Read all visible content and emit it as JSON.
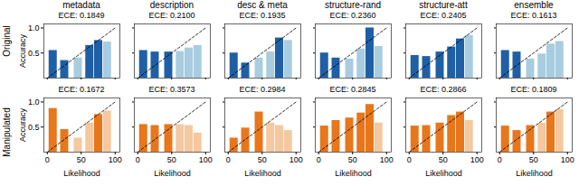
{
  "chart_data": [
    {
      "type": "bar",
      "title": "metadata",
      "subtitle": "ECE: 0.1849",
      "ylabel": "Accuracy",
      "xlim": [
        -5,
        107
      ],
      "ylim": [
        0,
        1.08
      ],
      "xticks": [
        0,
        50,
        100
      ],
      "yticks": [
        0.5,
        {
          "value": 1.0,
          "label": "1.0"
        }
      ],
      "tick_labels": "y",
      "annotations": [
        {
          "text": "Original"
        }
      ],
      "series": [
        {
          "type": "bar",
          "x": [
            8,
            25,
            45,
            62,
            75,
            88
          ],
          "values": [
            0.55,
            0.35,
            0.4,
            0.65,
            0.75,
            0.72
          ],
          "colors": [
            "#1f5fa6",
            "#1f5fa6",
            "#a8cce0",
            "#1f5fa6",
            "#1f5fa6",
            "#a8cce0"
          ]
        },
        {
          "type": "line",
          "x": [
            0,
            100
          ],
          "values": [
            0,
            1.0
          ],
          "color": "black",
          "line_style": "dashed"
        }
      ]
    },
    {
      "type": "bar",
      "title": "description",
      "subtitle": "ECE: 0.2100",
      "xlim": [
        -5,
        107
      ],
      "ylim": [
        0,
        1.08
      ],
      "xticks": [
        0,
        50,
        100
      ],
      "yticks": [
        0.5,
        {
          "value": 1.0,
          "label": "1.0"
        }
      ],
      "tick_labels": false,
      "series": [
        {
          "type": "bar",
          "x": [
            8,
            25,
            45,
            62,
            75,
            88
          ],
          "values": [
            0.55,
            0.52,
            0.52,
            0.53,
            0.6,
            0.65
          ],
          "colors": [
            "#1f5fa6",
            "#1f5fa6",
            "#1f5fa6",
            "#a8cce0",
            "#a8cce0",
            "#a8cce0"
          ]
        },
        {
          "type": "line",
          "x": [
            0,
            100
          ],
          "values": [
            0,
            1.0
          ],
          "color": "black",
          "line_style": "dashed"
        }
      ]
    },
    {
      "type": "bar",
      "title": "desc & meta",
      "subtitle": "ECE: 0.1935",
      "xlim": [
        -5,
        107
      ],
      "ylim": [
        0,
        1.08
      ],
      "xticks": [
        0,
        50,
        100
      ],
      "yticks": [
        0.5,
        {
          "value": 1.0,
          "label": "1.0"
        }
      ],
      "tick_labels": false,
      "series": [
        {
          "type": "bar",
          "x": [
            8,
            25,
            45,
            62,
            75,
            88
          ],
          "values": [
            0.5,
            0.3,
            0.4,
            0.52,
            0.8,
            0.75
          ],
          "colors": [
            "#1f5fa6",
            "#1f5fa6",
            "#a8cce0",
            "#a8cce0",
            "#1f5fa6",
            "#a8cce0"
          ]
        },
        {
          "type": "line",
          "x": [
            0,
            100
          ],
          "values": [
            0,
            1.0
          ],
          "color": "black",
          "line_style": "dashed"
        }
      ]
    },
    {
      "type": "bar",
      "title": "structure-rand",
      "subtitle": "ECE: 0.2360",
      "xlim": [
        -5,
        107
      ],
      "ylim": [
        0,
        1.08
      ],
      "xticks": [
        0,
        50,
        100
      ],
      "yticks": [
        0.5,
        {
          "value": 1.0,
          "label": "1.0"
        }
      ],
      "tick_labels": false,
      "series": [
        {
          "type": "bar",
          "x": [
            8,
            25,
            45,
            62,
            75,
            88
          ],
          "values": [
            0.5,
            0.4,
            0.38,
            0.58,
            1.0,
            0.63
          ],
          "colors": [
            "#1f5fa6",
            "#1f5fa6",
            "#a8cce0",
            "#a8cce0",
            "#1f5fa6",
            "#a8cce0"
          ]
        },
        {
          "type": "line",
          "x": [
            0,
            100
          ],
          "values": [
            0,
            1.0
          ],
          "color": "black",
          "line_style": "dashed"
        }
      ]
    },
    {
      "type": "bar",
      "title": "structure-att",
      "subtitle": "ECE: 0.2405",
      "xlim": [
        -5,
        107
      ],
      "ylim": [
        0,
        1.08
      ],
      "xticks": [
        0,
        50,
        100
      ],
      "yticks": [
        0.5,
        {
          "value": 1.0,
          "label": "1.0"
        }
      ],
      "tick_labels": false,
      "series": [
        {
          "type": "bar",
          "x": [
            8,
            25,
            45,
            62,
            75,
            88
          ],
          "values": [
            0.45,
            0.43,
            0.52,
            0.62,
            0.78,
            0.85
          ],
          "colors": [
            "#1f5fa6",
            "#1f5fa6",
            "#1f5fa6",
            "#1f5fa6",
            "#1f5fa6",
            "#a8cce0"
          ]
        },
        {
          "type": "line",
          "x": [
            0,
            100
          ],
          "values": [
            0,
            1.0
          ],
          "color": "black",
          "line_style": "dashed"
        }
      ]
    },
    {
      "type": "bar",
      "title": "ensemble",
      "subtitle": "ECE: 0.1613",
      "xlim": [
        -5,
        107
      ],
      "ylim": [
        0,
        1.08
      ],
      "xticks": [
        0,
        50,
        100
      ],
      "yticks": [
        0.5,
        {
          "value": 1.0,
          "label": "1.0"
        }
      ],
      "tick_labels": false,
      "series": [
        {
          "type": "bar",
          "x": [
            8,
            25,
            45,
            62,
            75,
            88
          ],
          "values": [
            0.55,
            0.52,
            0.38,
            0.48,
            0.68,
            0.73
          ],
          "colors": [
            "#1f5fa6",
            "#1f5fa6",
            "#a8cce0",
            "#a8cce0",
            "#a8cce0",
            "#a8cce0"
          ]
        },
        {
          "type": "line",
          "x": [
            0,
            100
          ],
          "values": [
            0,
            1.0
          ],
          "color": "black",
          "line_style": "dashed"
        }
      ]
    },
    {
      "type": "bar",
      "title": "ECE: 0.1672",
      "xlabel": "Likelihood",
      "ylabel": "Accuracy",
      "xlim": [
        -5,
        107
      ],
      "ylim": [
        0,
        1.08
      ],
      "xticks": [
        0,
        50,
        100
      ],
      "yticks": [
        0.5,
        {
          "value": 1.0,
          "label": "1.0"
        }
      ],
      "annotations": [
        {
          "text": "Manipulated"
        }
      ],
      "series": [
        {
          "type": "bar",
          "x": [
            8,
            25,
            45,
            62,
            75,
            88
          ],
          "values": [
            0.87,
            0.45,
            0.28,
            0.58,
            0.75,
            0.82
          ],
          "colors": [
            "#e8761a",
            "#e8761a",
            "#f5c8a0",
            "#f5c8a0",
            "#e8761a",
            "#f5c8a0"
          ]
        },
        {
          "type": "line",
          "x": [
            0,
            100
          ],
          "values": [
            0,
            1.0
          ],
          "color": "black",
          "line_style": "dashed"
        }
      ]
    },
    {
      "type": "bar",
      "title": "ECE: 0.3573",
      "xlabel": "Likelihood",
      "xlim": [
        -5,
        107
      ],
      "ylim": [
        0,
        1.08
      ],
      "xticks": [
        0,
        50,
        100
      ],
      "yticks": [
        0.5,
        {
          "value": 1.0,
          "label": "1.0"
        }
      ],
      "tick_labels": "x",
      "series": [
        {
          "type": "bar",
          "x": [
            8,
            25,
            45,
            62,
            75,
            88
          ],
          "values": [
            0.55,
            0.53,
            0.55,
            0.55,
            0.53,
            0.38
          ],
          "colors": [
            "#e8761a",
            "#e8761a",
            "#e8761a",
            "#f5c8a0",
            "#f5c8a0",
            "#f5c8a0"
          ]
        },
        {
          "type": "line",
          "x": [
            0,
            100
          ],
          "values": [
            0,
            1.0
          ],
          "color": "black",
          "line_style": "dashed"
        }
      ]
    },
    {
      "type": "bar",
      "title": "ECE: 0.2984",
      "xlabel": "Likelihood",
      "xlim": [
        -5,
        107
      ],
      "ylim": [
        0,
        1.08
      ],
      "xticks": [
        0,
        50,
        100
      ],
      "yticks": [
        0.5,
        {
          "value": 1.0,
          "label": "1.0"
        }
      ],
      "tick_labels": "x",
      "series": [
        {
          "type": "bar",
          "x": [
            8,
            25,
            45,
            62,
            75,
            88
          ],
          "values": [
            0.28,
            0.48,
            0.8,
            0.58,
            0.53,
            0.43
          ],
          "colors": [
            "#e8761a",
            "#e8761a",
            "#e8761a",
            "#f5c8a0",
            "#f5c8a0",
            "#f5c8a0"
          ]
        },
        {
          "type": "line",
          "x": [
            0,
            100
          ],
          "values": [
            0,
            1.0
          ],
          "color": "black",
          "line_style": "dashed"
        }
      ]
    },
    {
      "type": "bar",
      "title": "ECE: 0.2845",
      "xlabel": "Likelihood",
      "xlim": [
        -5,
        107
      ],
      "ylim": [
        0,
        1.08
      ],
      "xticks": [
        0,
        50,
        100
      ],
      "yticks": [
        0.5,
        {
          "value": 1.0,
          "label": "1.0"
        }
      ],
      "tick_labels": "x",
      "series": [
        {
          "type": "bar",
          "x": [
            8,
            25,
            45,
            62,
            75,
            88
          ],
          "values": [
            0.52,
            0.63,
            0.68,
            0.78,
            0.95,
            0.58
          ],
          "colors": [
            "#e8761a",
            "#e8761a",
            "#e8761a",
            "#e8761a",
            "#e8761a",
            "#f5c8a0"
          ]
        },
        {
          "type": "line",
          "x": [
            0,
            100
          ],
          "values": [
            0,
            1.0
          ],
          "color": "black",
          "line_style": "dashed"
        }
      ]
    },
    {
      "type": "bar",
      "title": "ECE: 0.2866",
      "xlabel": "Likelihood",
      "xlim": [
        -5,
        107
      ],
      "ylim": [
        0,
        1.08
      ],
      "xticks": [
        0,
        50,
        100
      ],
      "yticks": [
        0.5,
        {
          "value": 1.0,
          "label": "1.0"
        }
      ],
      "tick_labels": "x",
      "series": [
        {
          "type": "bar",
          "x": [
            8,
            25,
            45,
            62,
            75,
            88
          ],
          "values": [
            0.52,
            0.53,
            0.58,
            0.73,
            0.8,
            0.63
          ],
          "colors": [
            "#e8761a",
            "#e8761a",
            "#e8761a",
            "#e8761a",
            "#e8761a",
            "#f5c8a0"
          ]
        },
        {
          "type": "line",
          "x": [
            0,
            100
          ],
          "values": [
            0,
            1.0
          ],
          "color": "black",
          "line_style": "dashed"
        }
      ]
    },
    {
      "type": "bar",
      "title": "ECE: 0.1809",
      "xlabel": "Likelihood",
      "xlim": [
        -5,
        107
      ],
      "ylim": [
        0,
        1.08
      ],
      "xticks": [
        0,
        50,
        100
      ],
      "yticks": [
        0.5,
        {
          "value": 1.0,
          "label": "1.0"
        }
      ],
      "tick_labels": "x",
      "series": [
        {
          "type": "bar",
          "x": [
            8,
            25,
            45,
            62,
            75,
            88
          ],
          "values": [
            0.52,
            0.43,
            0.53,
            0.58,
            0.8,
            0.85
          ],
          "colors": [
            "#e8761a",
            "#e8761a",
            "#e8761a",
            "#f5c8a0",
            "#e8761a",
            "#f5c8a0"
          ]
        },
        {
          "type": "line",
          "x": [
            0,
            100
          ],
          "values": [
            0,
            1.0
          ],
          "color": "black",
          "line_style": "dashed"
        }
      ]
    }
  ]
}
